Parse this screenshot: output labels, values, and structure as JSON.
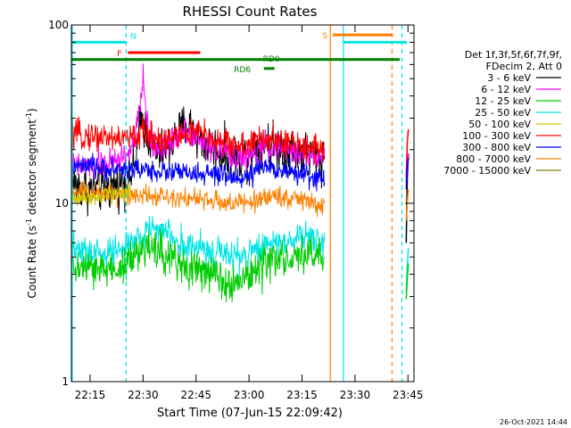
{
  "chart_data": {
    "type": "line",
    "title": "RHESSI Count Rates",
    "xlabel": "Start Time (07-Jun-15 22:09:42)",
    "ylabel_main": "Count Rate (s",
    "ylabel_sup": "-1",
    "ylabel_tail": " detector segment",
    "ylabel_sup2": "-1",
    "ylabel_end": ")",
    "x_unit": "minutes after 22:09:42",
    "xlim": [
      0,
      97
    ],
    "ylim": [
      1,
      100
    ],
    "yscale": "log",
    "x_ticks": [
      {
        "t": 5.3,
        "label": "22:15"
      },
      {
        "t": 20.3,
        "label": "22:30"
      },
      {
        "t": 35.3,
        "label": "22:45"
      },
      {
        "t": 50.3,
        "label": "23:00"
      },
      {
        "t": 65.3,
        "label": "23:15"
      },
      {
        "t": 80.3,
        "label": "23:30"
      },
      {
        "t": 95.3,
        "label": "23:45"
      }
    ],
    "y_ticks": [
      {
        "v": 1,
        "label": "1"
      },
      {
        "v": 10,
        "label": "10"
      },
      {
        "v": 100,
        "label": "100"
      }
    ],
    "legend": {
      "position": "right",
      "header": [
        "Det 1f,3f,5f,6f,7f,9f,",
        "FDecim 2, Att 0"
      ],
      "entries": [
        {
          "label": "3 - 6 keV",
          "color": "#000000"
        },
        {
          "label": "6 - 12 keV",
          "color": "#ff00ff"
        },
        {
          "label": "12 - 25 keV",
          "color": "#00cc00"
        },
        {
          "label": "25 - 50 keV",
          "color": "#00e5e5"
        },
        {
          "label": "50 - 100 keV",
          "color": "#d4c800"
        },
        {
          "label": "100 - 300 keV",
          "color": "#ff0000"
        },
        {
          "label": "300 - 800 keV",
          "color": "#0000ff"
        },
        {
          "label": "800 - 7000 keV",
          "color": "#ff8000"
        },
        {
          "label": "7000 - 15000 keV",
          "color": "#808000"
        }
      ]
    },
    "series": [
      {
        "name": "3 - 6 keV",
        "color": "#000000",
        "x": [
          0,
          4,
          8,
          12,
          16,
          18,
          19.2,
          20,
          21,
          22.5,
          24,
          26,
          28,
          30,
          32,
          33.2,
          34.2,
          35.5,
          37,
          39,
          41,
          43,
          45,
          47,
          50,
          52,
          54,
          56,
          58,
          60,
          62,
          64,
          66,
          68,
          70,
          71.8
        ],
        "y": [
          13,
          12,
          12,
          12.5,
          13.5,
          16,
          25,
          30,
          26,
          22,
          19,
          19.5,
          21,
          24,
          27,
          28,
          26,
          24,
          22,
          21,
          20,
          19,
          18.5,
          18,
          19,
          21,
          22,
          21.5,
          21,
          20.5,
          20,
          19.5,
          19,
          18.5,
          18,
          18
        ]
      },
      {
        "name": "6 - 12 keV",
        "color": "#ff00ff",
        "x": [
          0,
          4,
          8,
          12,
          16,
          18,
          19.5,
          20.3,
          20.8,
          21.8,
          23,
          25,
          28,
          30,
          31.5,
          33.5,
          35,
          37,
          40,
          43,
          46,
          49,
          52,
          54,
          56,
          58,
          60,
          62,
          64,
          66,
          68,
          70,
          71.8
        ],
        "y": [
          16,
          16,
          16.5,
          17,
          19,
          22,
          35,
          52,
          38,
          25,
          21,
          20.5,
          21.5,
          24,
          27,
          25,
          23,
          22,
          20.5,
          19.5,
          18.5,
          18,
          19,
          20.5,
          21,
          20.5,
          20,
          19.5,
          19.5,
          19,
          18.5,
          18,
          18
        ]
      },
      {
        "name": "100 - 300 keV",
        "color": "#ff0000",
        "x": [
          0,
          5,
          10,
          15,
          18,
          20,
          22,
          25,
          28,
          30,
          32,
          34,
          36,
          38,
          40,
          43,
          46,
          49,
          52,
          54,
          56,
          58,
          60,
          63,
          66,
          69,
          71.8
        ],
        "y": [
          24,
          24,
          23.5,
          23,
          23.5,
          25,
          24,
          23,
          23,
          23.5,
          24,
          25,
          25,
          24,
          23,
          22,
          21.5,
          21,
          22,
          23,
          23,
          22.5,
          22,
          21.5,
          21,
          21,
          20.5
        ]
      },
      {
        "name": "300 - 800 keV",
        "color": "#0000ff",
        "x": [
          0,
          5,
          10,
          15,
          20,
          25,
          30,
          35,
          40,
          45,
          50,
          53,
          56,
          59,
          62,
          65,
          68,
          71.8
        ],
        "y": [
          16,
          16,
          15.5,
          15.5,
          15.5,
          15,
          15,
          14.5,
          14.5,
          14,
          14,
          15.5,
          16,
          15.5,
          15,
          14.5,
          14,
          13.5
        ]
      },
      {
        "name": "800 - 7000 keV",
        "color": "#ff8000",
        "x": [
          0,
          5,
          10,
          15,
          20,
          25,
          30,
          35,
          40,
          45,
          50,
          53,
          56,
          59,
          62,
          65,
          68,
          71.8
        ],
        "y": [
          11.5,
          11.5,
          11.5,
          11.3,
          11.3,
          11,
          11,
          10.5,
          10.3,
          10,
          10,
          10.5,
          11,
          11,
          10.7,
          10.5,
          10,
          9.5
        ]
      },
      {
        "name": "50 - 100 keV",
        "color": "#d4c800",
        "x": [
          0,
          3,
          6,
          9,
          12,
          15,
          17
        ],
        "y": [
          10.5,
          10.8,
          11,
          11.2,
          11.3,
          11.5,
          11.5
        ]
      },
      {
        "name": "25 - 50 keV",
        "color": "#00e5e5",
        "x": [
          0,
          4,
          8,
          12,
          16,
          20,
          22,
          24,
          26,
          28,
          30,
          33,
          36,
          39,
          42,
          45,
          48,
          51,
          54,
          57,
          60,
          63,
          66,
          69,
          71.8
        ],
        "y": [
          5.5,
          5.3,
          5.2,
          5.3,
          5.7,
          6.5,
          7.3,
          7.3,
          7,
          6.5,
          6.1,
          5.8,
          5.6,
          5.4,
          5.2,
          5,
          5,
          5.3,
          5.8,
          6.1,
          6.1,
          6.3,
          6.5,
          6.4,
          6.2
        ]
      },
      {
        "name": "12 - 25 keV",
        "color": "#00cc00",
        "x": [
          0,
          4,
          8,
          12,
          16,
          20,
          22,
          24,
          26,
          28,
          30,
          33,
          36,
          39,
          42,
          45,
          48,
          51,
          54,
          57,
          60,
          63,
          66,
          69,
          71.8
        ],
        "y": [
          4.4,
          4.3,
          4.2,
          4.3,
          4.6,
          5.3,
          5.8,
          5.6,
          5.3,
          5,
          4.7,
          4.4,
          4.2,
          4,
          3.8,
          3.7,
          3.8,
          4,
          4.4,
          4.7,
          4.8,
          5,
          5.1,
          5,
          4.9
        ]
      }
    ],
    "return_segment": [
      {
        "color": "#000000",
        "y": [
          6,
          14,
          19
        ]
      },
      {
        "color": "#ff0000",
        "y": [
          14,
          22,
          26
        ]
      },
      {
        "color": "#ff00ff",
        "y": [
          13,
          17,
          19
        ]
      },
      {
        "color": "#0000ff",
        "y": [
          12,
          16,
          18
        ]
      },
      {
        "color": "#ff8000",
        "y": [
          8,
          10,
          12
        ]
      },
      {
        "color": "#00e5e5",
        "y": [
          3.2,
          4.5,
          5.6
        ]
      },
      {
        "color": "#00cc00",
        "y": [
          2.9,
          3.8,
          4.6
        ]
      }
    ],
    "return_start": 94.8,
    "return_end": 95.4,
    "annotations": [
      {
        "name": "N",
        "color": "#00e5e5",
        "x1": 0,
        "x2": 15.5,
        "y": 80,
        "label_t": 17.5,
        "label_dy": -4
      },
      {
        "name": "N",
        "color": "#00e5e5",
        "x1": 77,
        "x2": 95,
        "y": 80,
        "label_t": null,
        "label_dy": 0
      },
      {
        "name": "F",
        "color": "#ff0000",
        "x1": 16,
        "x2": 36.5,
        "y": 70,
        "label_t": 13.6,
        "label_dy": 4
      },
      {
        "name": "S",
        "color": "#ff8000",
        "x1": 74,
        "x2": 91,
        "y": 88,
        "label_t": 71.8,
        "label_dy": 4
      },
      {
        "name": "RD0",
        "color": "#008000",
        "x1": 0,
        "x2": 93,
        "y": 64,
        "label_t": 56.6,
        "label_dy": 2
      },
      {
        "name": "RD6",
        "color": "#008000",
        "x1": 54.5,
        "x2": 57.5,
        "y": 57,
        "label_t": 48.4,
        "label_dy": 4
      }
    ],
    "vlines": [
      {
        "x": 0,
        "color": "#00e5e5",
        "style": "solid"
      },
      {
        "x": 15.5,
        "color": "#00e5e5",
        "style": "dashed"
      },
      {
        "x": 73.3,
        "color": "#ff8000",
        "style": "solid"
      },
      {
        "x": 77,
        "color": "#00e5e5",
        "style": "solid"
      },
      {
        "x": 90.8,
        "color": "#ff8000",
        "style": "dashed"
      },
      {
        "x": 93.6,
        "color": "#00e5e5",
        "style": "dashed"
      }
    ],
    "timestamp": "26-Oct-2021 14:44"
  }
}
